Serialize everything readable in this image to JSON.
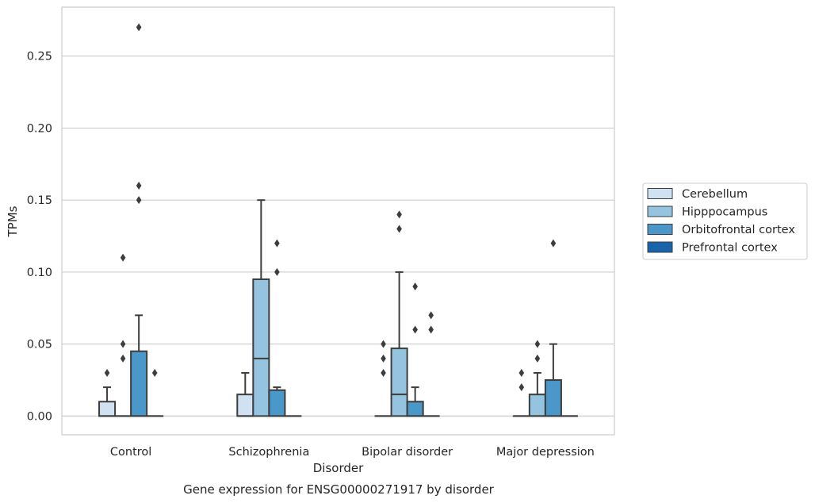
{
  "chart_data": {
    "type": "boxplot",
    "caption": "Gene expression for ENSG00000271917 by disorder",
    "xlabel": "Disorder",
    "ylabel": "TPMs",
    "ylim": [
      -0.013,
      0.284
    ],
    "yticks": [
      0.0,
      0.05,
      0.1,
      0.15,
      0.2,
      0.25
    ],
    "ytick_labels": [
      "0.00",
      "0.05",
      "0.10",
      "0.15",
      "0.20",
      "0.25"
    ],
    "grid": "horizontal",
    "legend_position": "right",
    "categories": [
      "Control",
      "Schizophrenia",
      "Bipolar disorder",
      "Major depression"
    ],
    "series": [
      {
        "name": "Cerebellum",
        "color": "#d0e1f2",
        "boxes": [
          {
            "q1": 0.0,
            "median": 0.0,
            "q3": 0.01,
            "whisker_low": 0.0,
            "whisker_high": 0.02,
            "outliers": [
              0.03
            ]
          },
          {
            "q1": 0.0,
            "median": 0.0,
            "q3": 0.015,
            "whisker_low": 0.0,
            "whisker_high": 0.03,
            "outliers": []
          },
          {
            "q1": 0.0,
            "median": 0.0,
            "q3": 0.0,
            "whisker_low": 0.0,
            "whisker_high": 0.0,
            "outliers": [
              0.03,
              0.04,
              0.05
            ]
          },
          {
            "q1": 0.0,
            "median": 0.0,
            "q3": 0.0,
            "whisker_low": 0.0,
            "whisker_high": 0.0,
            "outliers": [
              0.02,
              0.03
            ]
          }
        ]
      },
      {
        "name": "Hipppocampus",
        "color": "#94c4df",
        "boxes": [
          {
            "q1": 0.0,
            "median": 0.0,
            "q3": 0.0,
            "whisker_low": 0.0,
            "whisker_high": 0.0,
            "outliers": [
              0.04,
              0.05,
              0.11
            ]
          },
          {
            "q1": 0.0,
            "median": 0.04,
            "q3": 0.095,
            "whisker_low": 0.0,
            "whisker_high": 0.15,
            "outliers": []
          },
          {
            "q1": 0.0,
            "median": 0.015,
            "q3": 0.047,
            "whisker_low": 0.0,
            "whisker_high": 0.1,
            "outliers": [
              0.13,
              0.14
            ]
          },
          {
            "q1": 0.0,
            "median": 0.0,
            "q3": 0.015,
            "whisker_low": 0.0,
            "whisker_high": 0.03,
            "outliers": [
              0.04,
              0.05
            ]
          }
        ]
      },
      {
        "name": "Orbitofrontal cortex",
        "color": "#4a98c9",
        "boxes": [
          {
            "q1": 0.0,
            "median": 0.0,
            "q3": 0.045,
            "whisker_low": 0.0,
            "whisker_high": 0.07,
            "outliers": [
              0.15,
              0.16,
              0.27
            ]
          },
          {
            "q1": 0.0,
            "median": 0.0,
            "q3": 0.018,
            "whisker_low": 0.0,
            "whisker_high": 0.02,
            "outliers": [
              0.1,
              0.12
            ]
          },
          {
            "q1": 0.0,
            "median": 0.0,
            "q3": 0.01,
            "whisker_low": 0.0,
            "whisker_high": 0.02,
            "outliers": [
              0.06,
              0.09
            ]
          },
          {
            "q1": 0.0,
            "median": 0.0,
            "q3": 0.025,
            "whisker_low": 0.0,
            "whisker_high": 0.05,
            "outliers": [
              0.12
            ]
          }
        ]
      },
      {
        "name": "Prefrontal cortex",
        "color": "#1764ab",
        "boxes": [
          {
            "q1": 0.0,
            "median": 0.0,
            "q3": 0.0,
            "whisker_low": 0.0,
            "whisker_high": 0.0,
            "outliers": [
              0.03
            ]
          },
          {
            "q1": 0.0,
            "median": 0.0,
            "q3": 0.0,
            "whisker_low": 0.0,
            "whisker_high": 0.0,
            "outliers": []
          },
          {
            "q1": 0.0,
            "median": 0.0,
            "q3": 0.0,
            "whisker_low": 0.0,
            "whisker_high": 0.0,
            "outliers": [
              0.06,
              0.07
            ]
          },
          {
            "q1": 0.0,
            "median": 0.0,
            "q3": 0.0,
            "whisker_low": 0.0,
            "whisker_high": 0.0,
            "outliers": []
          }
        ]
      }
    ]
  }
}
